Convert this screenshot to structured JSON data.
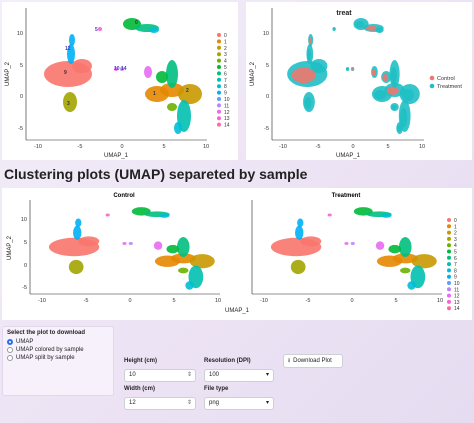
{
  "plots": {
    "top_left": {
      "x_axis_label": "UMAP_1",
      "y_axis_label": "UMAP_2",
      "x_ticks": [
        "-10",
        "-5",
        "0",
        "5",
        "10"
      ],
      "y_ticks": [
        "10",
        "5",
        "0",
        "-5"
      ],
      "legend": [
        "0",
        "1",
        "2",
        "3",
        "4",
        "5",
        "6",
        "7",
        "8",
        "9",
        "10",
        "11",
        "12",
        "13",
        "14"
      ],
      "cluster_labels": [
        "9",
        "12",
        "3",
        "1",
        "2",
        "0",
        "5",
        "10",
        "14"
      ]
    },
    "top_right": {
      "title": "treat",
      "x_axis_label": "UMAP_1",
      "y_axis_label": "UMAP_2",
      "x_ticks": [
        "-10",
        "-5",
        "0",
        "5",
        "10"
      ],
      "y_ticks": [
        "10",
        "5",
        "0",
        "-5"
      ],
      "legend": [
        {
          "label": "Control",
          "color": "#f0766e"
        },
        {
          "label": "Treatment",
          "color": "#1fbfc4"
        }
      ]
    },
    "bottom": {
      "section_title": "Clustering plots (UMAP) separeted by sample",
      "facets": [
        "Control",
        "Treatment"
      ],
      "x_axis_label": "UMAP_1",
      "y_axis_label": "UMAP_2",
      "x_ticks": [
        "-10",
        "-5",
        "0",
        "5",
        "10"
      ],
      "y_ticks": [
        "10",
        "5",
        "0",
        "-5"
      ],
      "legend": [
        "0",
        "1",
        "2",
        "3",
        "4",
        "5",
        "6",
        "7",
        "8",
        "9",
        "10",
        "11",
        "12",
        "13",
        "14"
      ]
    }
  },
  "cluster_colors": [
    "#f8766d",
    "#e58700",
    "#c99800",
    "#a3a500",
    "#6bb100",
    "#00ba38",
    "#00bf7d",
    "#00c0af",
    "#00bcd8",
    "#00b0f6",
    "#619cff",
    "#b983ff",
    "#e76bf3",
    "#fd61d1",
    "#ff67a4"
  ],
  "controls": {
    "plot_select": {
      "label": "Select the plot to download",
      "options": [
        "UMAP",
        "UMAP colored by sample",
        "UMAP split by sample"
      ],
      "selected": "UMAP"
    },
    "height": {
      "label": "Height (cm)",
      "value": "10"
    },
    "width": {
      "label": "Width (cm)",
      "value": "12"
    },
    "resolution": {
      "label": "Resolution (DPI)",
      "value": "100"
    },
    "filetype": {
      "label": "File type",
      "value": "png"
    },
    "download": {
      "label": "Download Plot"
    }
  }
}
